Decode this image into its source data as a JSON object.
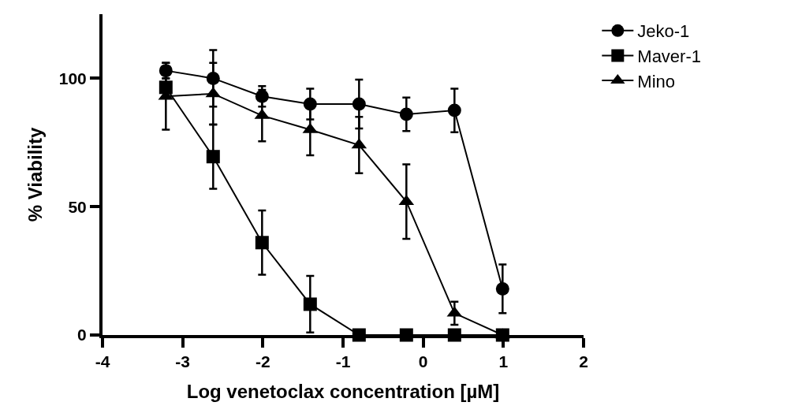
{
  "chart_data": {
    "type": "line",
    "xlabel": "Log venetoclax concentration [µM]",
    "ylabel": "% Viability",
    "x": [
      -3.21,
      -2.62,
      -2.01,
      -1.41,
      -0.8,
      -0.21,
      0.39,
      0.99
    ],
    "series": [
      {
        "name": "Jeko-1",
        "color": "#000000",
        "marker": "circle",
        "values": [
          103,
          100,
          93,
          90,
          90,
          86,
          87.5,
          18
        ],
        "errors": [
          3,
          11,
          4,
          6,
          9.5,
          6.5,
          8.5,
          9.5
        ]
      },
      {
        "name": "Maver-1",
        "color": "#000000",
        "marker": "square",
        "values": [
          96.5,
          69.5,
          36,
          12,
          0,
          0,
          0,
          0
        ],
        "errors": [
          3.5,
          12.5,
          12.5,
          11,
          null,
          null,
          null,
          null
        ]
      },
      {
        "name": "Mino",
        "color": "#000000",
        "marker": "triangle",
        "values": [
          93,
          94,
          85.5,
          80,
          74,
          52,
          8.5,
          0
        ],
        "errors": [
          13,
          12,
          10,
          10,
          11,
          14.5,
          4.5,
          null
        ]
      }
    ],
    "xlim": [
      -4,
      2
    ],
    "xticks": [
      -4,
      -3,
      -2,
      -1,
      0,
      1,
      2
    ],
    "ylim": [
      0,
      125
    ],
    "yticks": [
      0,
      50,
      100
    ],
    "grid": false,
    "legend": "top right",
    "line_style": "solid"
  }
}
